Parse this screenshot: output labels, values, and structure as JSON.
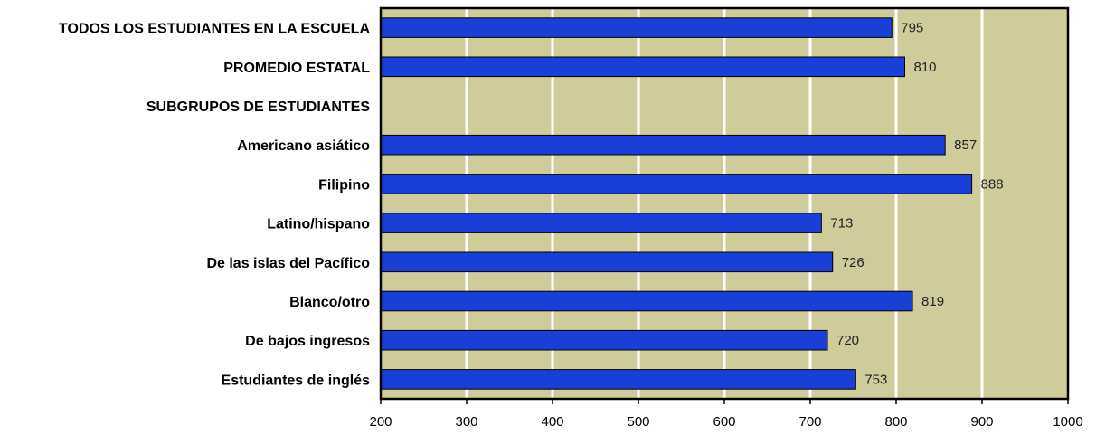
{
  "chart_data": {
    "type": "bar",
    "orientation": "horizontal",
    "categories": [
      "TODOS LOS ESTUDIANTES EN LA ESCUELA",
      "PROMEDIO ESTATAL",
      "SUBGRUPOS DE ESTUDIANTES",
      "Americano asiático",
      "Filipino",
      "Latino/hispano",
      "De las islas del Pacífico",
      "Blanco/otro",
      "De bajos ingresos",
      "Estudiantes de inglés"
    ],
    "values": [
      795,
      810,
      null,
      857,
      888,
      713,
      726,
      819,
      720,
      753
    ],
    "value_labels": [
      "795",
      "810",
      "",
      "857",
      "888",
      "713",
      "726",
      "819",
      "720",
      "753"
    ],
    "xlim": [
      200,
      1000
    ],
    "x_ticks": [
      "200",
      "300",
      "400",
      "500",
      "600",
      "700",
      "800",
      "900",
      "1000"
    ],
    "grid": "vertical",
    "title": "",
    "xlabel": "",
    "ylabel": "",
    "colors": {
      "bar": "#1a3fd6",
      "bar_border": "#000000",
      "plot_background": "#cfcb9b",
      "gridline": "#ffffff"
    }
  }
}
